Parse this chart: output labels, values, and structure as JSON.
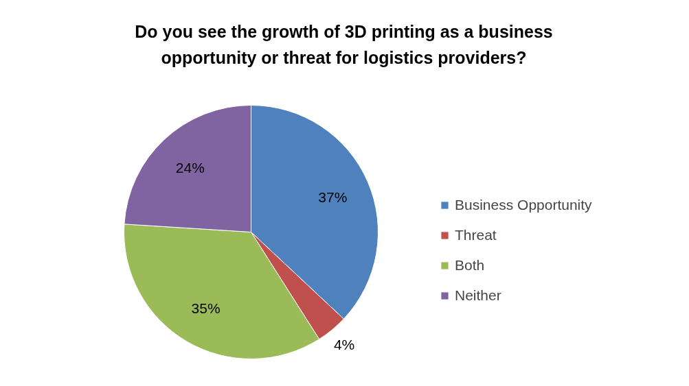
{
  "chart_data": {
    "type": "pie",
    "title": "Do you see the growth of 3D printing as a business opportunity or threat for logistics providers?",
    "categories": [
      "Business Opportunity",
      "Threat",
      "Both",
      "Neither"
    ],
    "values": [
      37,
      4,
      35,
      24
    ],
    "colors": [
      "#4f81bd",
      "#c0504d",
      "#9bbb59",
      "#8064a2"
    ],
    "value_labels": [
      "37%",
      "4%",
      "35%",
      "24%"
    ],
    "legend": "right"
  }
}
